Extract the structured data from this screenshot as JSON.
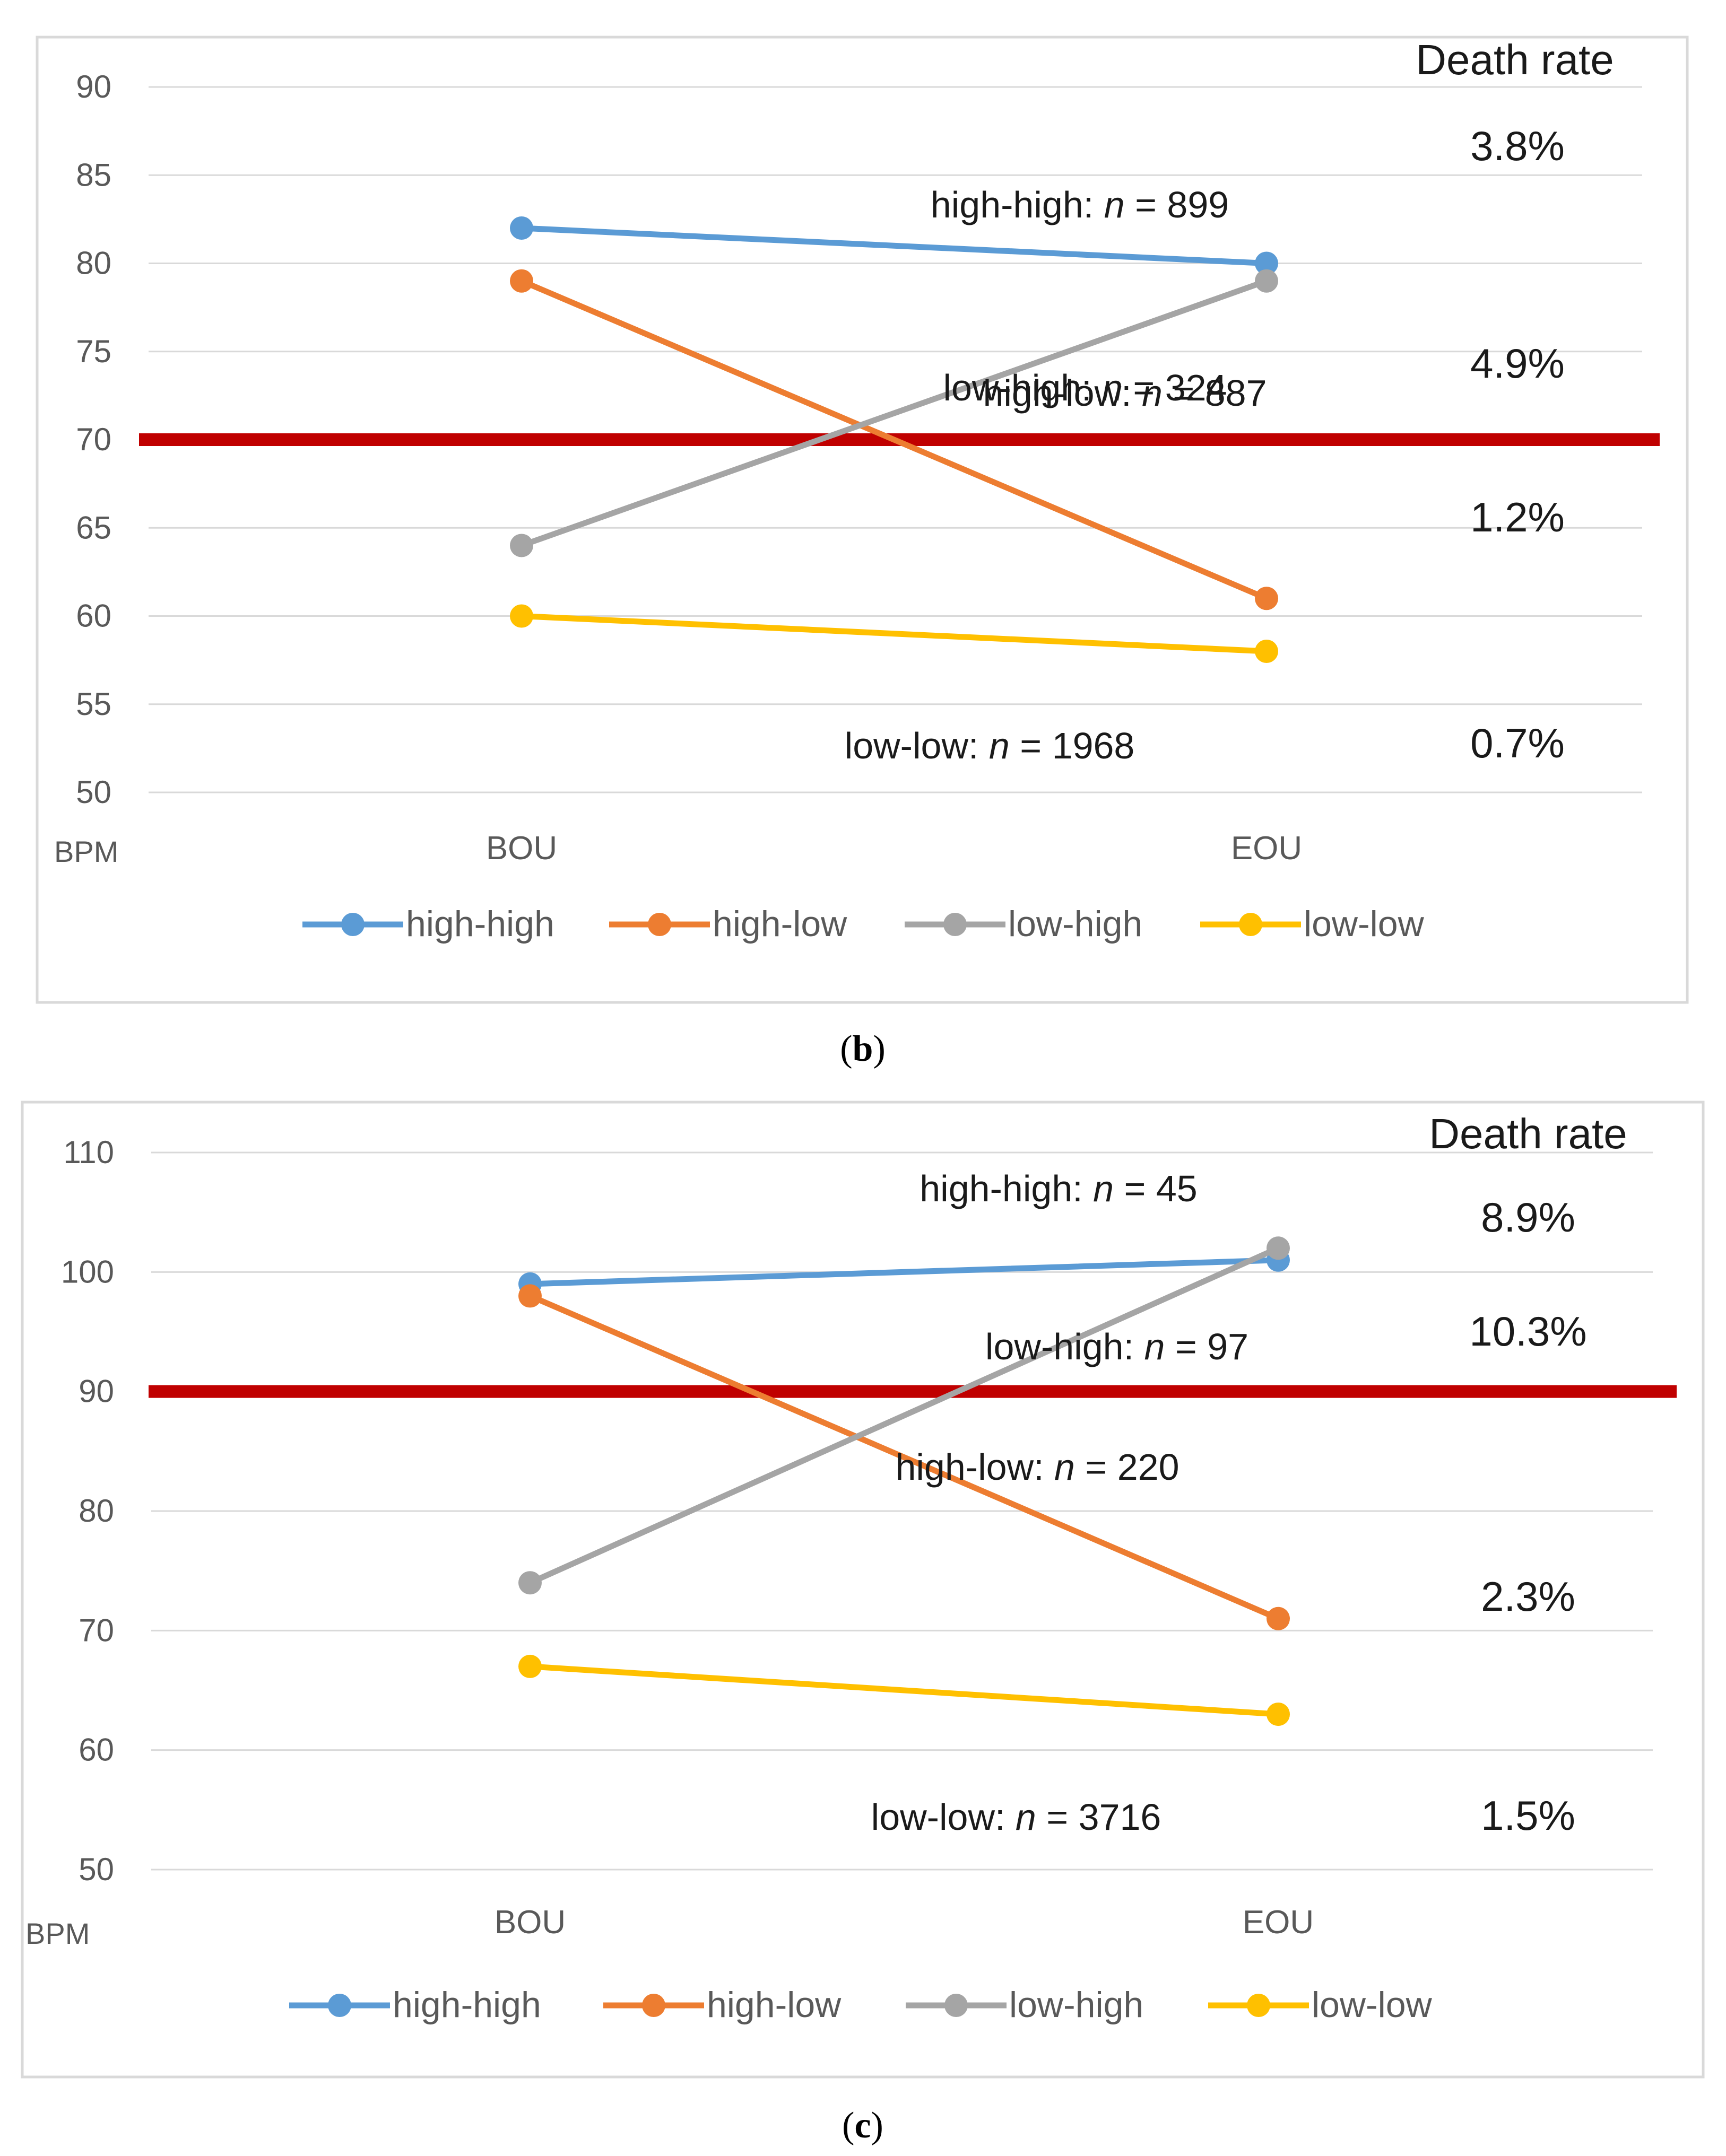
{
  "chart_data": [
    {
      "type": "line",
      "panel": "b",
      "caption_letter": "b",
      "ylabel": "BPM",
      "ylim": [
        50,
        90
      ],
      "yticks": [
        50,
        55,
        60,
        65,
        70,
        75,
        80,
        85,
        90
      ],
      "categories": [
        "BOU",
        "EOU"
      ],
      "threshold": 70,
      "threshold_color": "#c00000",
      "death_rate_header": "Death rate",
      "series": [
        {
          "name": "high-high",
          "color": "#5b9bd5",
          "values": [
            82,
            80
          ],
          "annotation": {
            "label": "high-high: ",
            "n_symbol": "n",
            "n_text": " = 899"
          },
          "death_rate": "3.8%"
        },
        {
          "name": "high-low",
          "color": "#ed7d31",
          "values": [
            79,
            61
          ],
          "annotation": {
            "label": "high-low: ",
            "n_symbol": "n",
            "n_text": " = 887"
          },
          "death_rate": "1.2%"
        },
        {
          "name": "low-high",
          "color": "#a5a5a5",
          "values": [
            64,
            79
          ],
          "annotation": {
            "label": "low-high: ",
            "n_symbol": "n",
            "n_text": " = 324"
          },
          "death_rate": "4.9%"
        },
        {
          "name": "low-low",
          "color": "#ffc000",
          "values": [
            60,
            58
          ],
          "annotation": {
            "label": "low-low: ",
            "n_symbol": "n",
            "n_text": " = 1968"
          },
          "death_rate": "0.7%"
        }
      ]
    },
    {
      "type": "line",
      "panel": "c",
      "caption_letter": "c",
      "ylabel": "BPM",
      "ylim": [
        50,
        110
      ],
      "yticks": [
        50,
        60,
        70,
        80,
        90,
        100,
        110
      ],
      "categories": [
        "BOU",
        "EOU"
      ],
      "threshold": 90,
      "threshold_color": "#c00000",
      "death_rate_header": "Death rate",
      "series": [
        {
          "name": "high-high",
          "color": "#5b9bd5",
          "values": [
            99,
            101
          ],
          "annotation": {
            "label": "high-high: ",
            "n_symbol": "n",
            "n_text": " = 45"
          },
          "death_rate": "8.9%"
        },
        {
          "name": "high-low",
          "color": "#ed7d31",
          "values": [
            98,
            71
          ],
          "annotation": {
            "label": "high-low: ",
            "n_symbol": "n",
            "n_text": " = 220"
          },
          "death_rate": "2.3%"
        },
        {
          "name": "low-high",
          "color": "#a5a5a5",
          "values": [
            74,
            102
          ],
          "annotation": {
            "label": "low-high: ",
            "n_symbol": "n",
            "n_text": " = 97"
          },
          "death_rate": "10.3%"
        },
        {
          "name": "low-low",
          "color": "#ffc000",
          "values": [
            67,
            63
          ],
          "annotation": {
            "label": "low-low: ",
            "n_symbol": "n",
            "n_text": " = 3716"
          },
          "death_rate": "1.5%"
        }
      ]
    }
  ]
}
